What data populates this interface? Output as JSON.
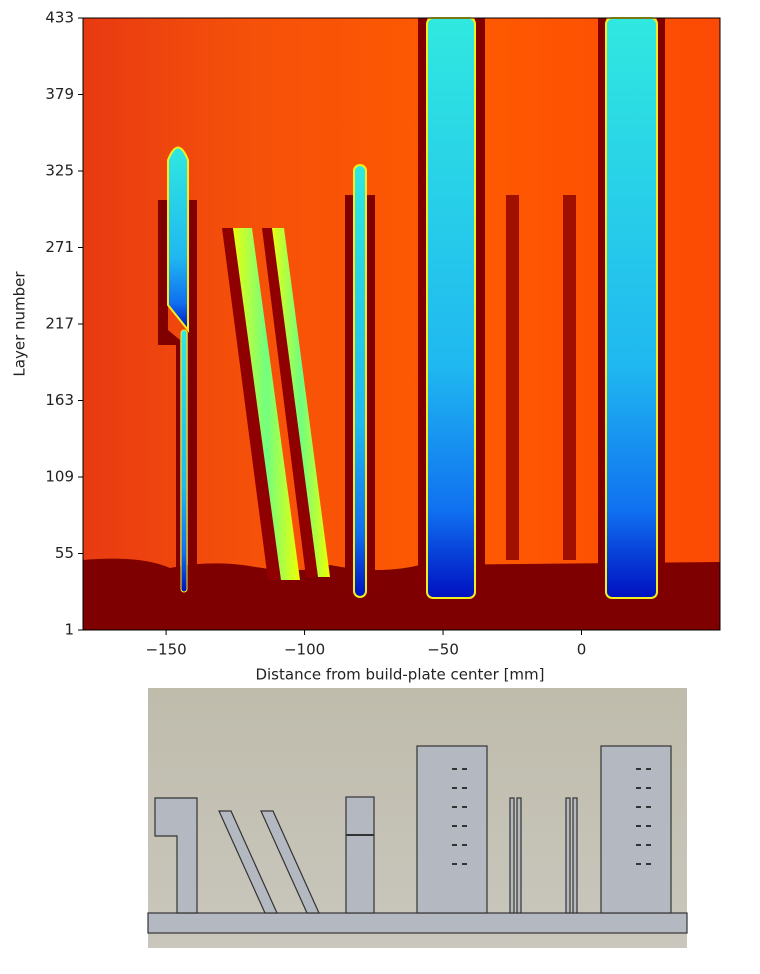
{
  "chart_data": {
    "type": "heatmap",
    "x_label": "Distance from build-plate center [mm]",
    "y_label": "Layer number",
    "xlim": [
      -180,
      50
    ],
    "ylim": [
      1,
      433
    ],
    "xticks": [
      {
        "value": -150,
        "label": "−150"
      },
      {
        "value": -100,
        "label": "−100"
      },
      {
        "value": -50,
        "label": "−50"
      },
      0
    ],
    "yticks": [
      1,
      55,
      109,
      163,
      217,
      271,
      325,
      379,
      433
    ]
  }
}
